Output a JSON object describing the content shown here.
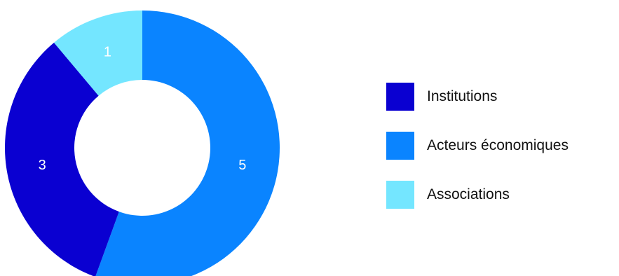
{
  "chart_data": {
    "type": "pie",
    "variant": "donut",
    "categories": [
      "Institutions",
      "Acteurs économiques",
      "Associations"
    ],
    "values": [
      3,
      5,
      1
    ],
    "colors": [
      "#0a00d1",
      "#0a84ff",
      "#74e6ff"
    ],
    "data_labels": [
      "3",
      "5",
      "1"
    ],
    "legend_position": "right",
    "title": ""
  },
  "legend": {
    "items": [
      {
        "label": "Institutions",
        "color": "#0a00d1"
      },
      {
        "label": "Acteurs économiques",
        "color": "#0a84ff"
      },
      {
        "label": "Associations",
        "color": "#74e6ff"
      }
    ]
  }
}
